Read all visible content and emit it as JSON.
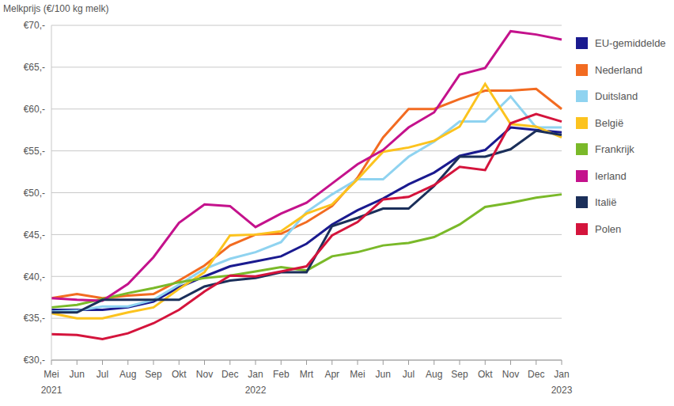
{
  "chart_data": {
    "type": "line",
    "title": "Melkprijs (€/100 kg melk)",
    "categories": [
      "Mei 2021",
      "Jun",
      "Jul",
      "Aug",
      "Sep",
      "Okt",
      "Nov",
      "Dec",
      "Jan 2022",
      "Feb",
      "Mrt",
      "Apr",
      "Mei",
      "Jun",
      "Jul",
      "Aug",
      "Sep",
      "Okt",
      "Nov",
      "Dec",
      "Jan 2023"
    ],
    "ylim": [
      30,
      70
    ],
    "yticks": [
      {
        "value": 30,
        "label": "€30,-"
      },
      {
        "value": 35,
        "label": "€35,-"
      },
      {
        "value": 40,
        "label": "€40,-"
      },
      {
        "value": 45,
        "label": "€45,-"
      },
      {
        "value": 50,
        "label": "€50,-"
      },
      {
        "value": 55,
        "label": "€55,-"
      },
      {
        "value": 60,
        "label": "€60,-"
      },
      {
        "value": 65,
        "label": "€65,-"
      },
      {
        "value": 70,
        "label": "€70,-"
      }
    ],
    "grid": true,
    "legend": "right",
    "series": [
      {
        "name": "EU-gemiddelde",
        "color": "#1a1a8f",
        "values": [
          36.0,
          36.0,
          36.0,
          36.3,
          37.0,
          38.7,
          40.0,
          41.2,
          41.8,
          42.4,
          43.9,
          46.2,
          47.9,
          49.3,
          51.0,
          52.4,
          54.4,
          55.1,
          57.8,
          57.5,
          57.2
        ]
      },
      {
        "name": "Nederland",
        "color": "#f26b21",
        "values": [
          37.4,
          37.9,
          37.4,
          37.7,
          37.9,
          39.5,
          41.3,
          43.7,
          45.0,
          45.1,
          46.5,
          48.4,
          51.8,
          56.6,
          60.0,
          60.0,
          61.2,
          62.2,
          62.2,
          62.4,
          60.0
        ]
      },
      {
        "name": "Duitsland",
        "color": "#8fd3f0",
        "values": [
          35.8,
          35.9,
          36.4,
          36.4,
          37.2,
          39.0,
          40.9,
          42.1,
          42.9,
          44.1,
          47.7,
          49.8,
          51.6,
          51.6,
          54.3,
          56.1,
          58.5,
          58.5,
          61.5,
          57.8,
          57.8
        ]
      },
      {
        "name": "België",
        "color": "#fcc31e",
        "values": [
          35.6,
          35.0,
          35.0,
          35.7,
          36.3,
          38.5,
          40.5,
          44.9,
          45.0,
          45.4,
          47.5,
          48.6,
          51.6,
          54.9,
          55.4,
          56.2,
          57.9,
          63.0,
          58.2,
          57.9,
          56.6
        ]
      },
      {
        "name": "Frankrijk",
        "color": "#7ab929",
        "values": [
          36.3,
          36.6,
          37.3,
          38.0,
          38.6,
          39.3,
          39.8,
          40.1,
          40.6,
          41.1,
          40.7,
          42.4,
          42.9,
          43.7,
          44.0,
          44.7,
          46.2,
          48.3,
          48.8,
          49.4,
          49.8
        ]
      },
      {
        "name": "Ierland",
        "color": "#c4128c",
        "values": [
          37.4,
          37.2,
          37.1,
          39.1,
          42.3,
          46.4,
          48.6,
          48.4,
          45.9,
          47.5,
          48.8,
          51.1,
          53.4,
          55.1,
          57.8,
          59.6,
          64.1,
          64.9,
          69.3,
          68.9,
          68.3
        ]
      },
      {
        "name": "Italië",
        "color": "#1b2f5a",
        "values": [
          35.7,
          35.7,
          37.2,
          37.2,
          37.2,
          37.2,
          38.8,
          39.5,
          39.8,
          40.5,
          40.5,
          46.0,
          47.0,
          48.1,
          48.1,
          50.8,
          54.3,
          54.3,
          55.2,
          57.4,
          56.9
        ]
      },
      {
        "name": "Polen",
        "color": "#d4143c",
        "values": [
          33.1,
          33.0,
          32.5,
          33.2,
          34.4,
          36.0,
          38.2,
          40.1,
          40.0,
          40.6,
          41.2,
          44.9,
          46.5,
          49.2,
          49.5,
          50.9,
          53.1,
          52.7,
          58.3,
          59.4,
          58.5
        ]
      }
    ]
  }
}
